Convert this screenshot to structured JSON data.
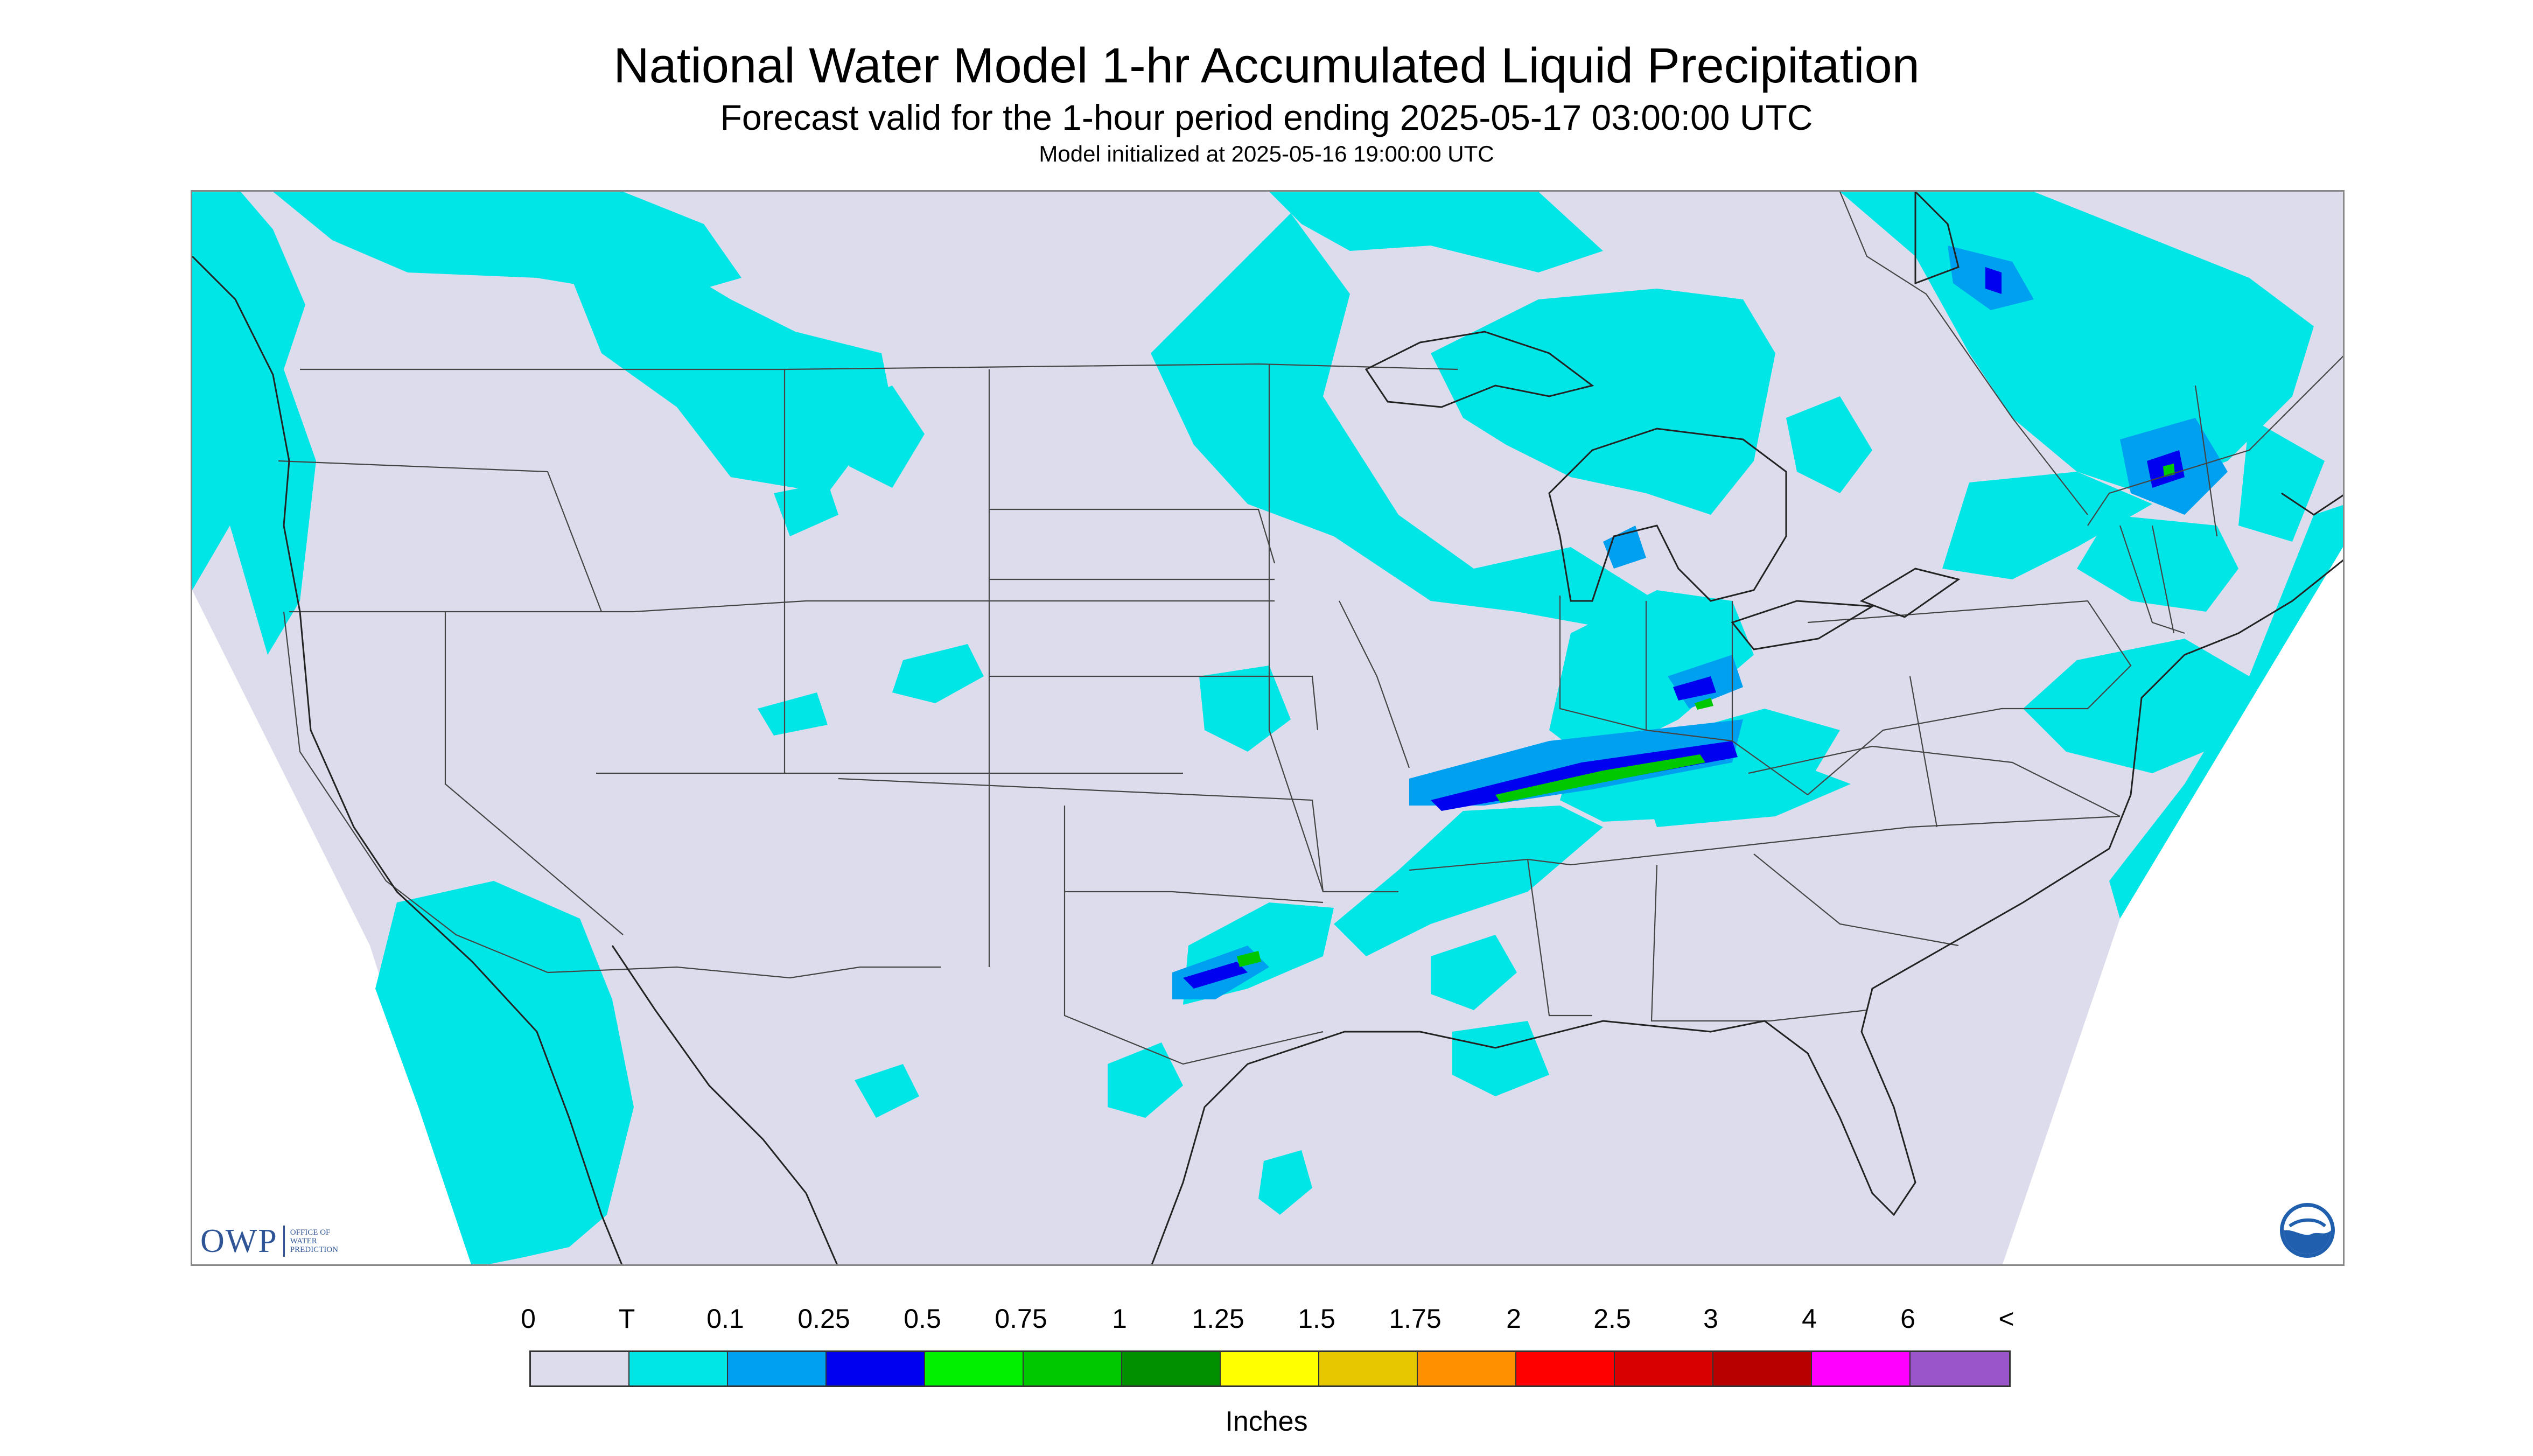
{
  "header": {
    "title": "National Water Model 1-hr Accumulated Liquid Precipitation",
    "subtitle": "Forecast valid for the 1-hour period ending 2025-05-17 03:00:00 UTC",
    "init_line": "Model initialized at 2025-05-16 19:00:00 UTC"
  },
  "logos": {
    "owp_text": "OWP",
    "owp_sub": [
      "OFFICE OF",
      "WATER",
      "PREDICTION"
    ],
    "noaa_text": "NOAA"
  },
  "legend": {
    "labels": [
      "0",
      "T",
      "0.1",
      "0.25",
      "0.5",
      "0.75",
      "1",
      "1.25",
      "1.5",
      "1.75",
      "2",
      "2.5",
      "3",
      "4",
      "6",
      "<"
    ],
    "colors": [
      "#dcdcec",
      "#00e6e6",
      "#00a0f0",
      "#0000f0",
      "#00f000",
      "#00c800",
      "#009000",
      "#ffff00",
      "#e6c800",
      "#ff9000",
      "#ff0000",
      "#d80000",
      "#b80000",
      "#ff00ff",
      "#9955c9"
    ],
    "units": "Inches"
  },
  "colors": {
    "no_data": "#dcdcec",
    "trace": "#00e6e6",
    "light": "#00a0f0",
    "moderate": "#0000f0",
    "heavy": "#00c800",
    "boundaries": "#444444"
  }
}
